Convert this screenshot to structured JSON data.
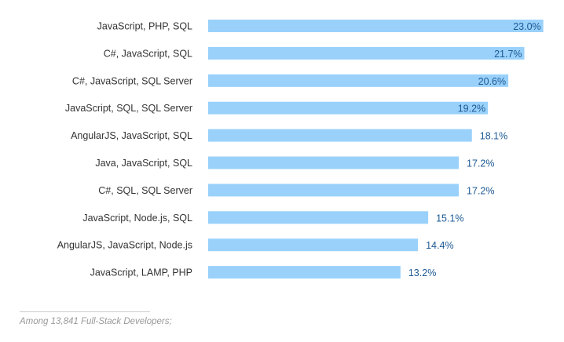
{
  "chart_data": {
    "type": "bar",
    "orientation": "horizontal",
    "categories": [
      "JavaScript, PHP, SQL",
      "C#, JavaScript, SQL",
      "C#, JavaScript, SQL Server",
      "JavaScript, SQL, SQL Server",
      "AngularJS, JavaScript, SQL",
      "Java, JavaScript, SQL",
      "C#, SQL, SQL Server",
      "JavaScript, Node.js, SQL",
      "AngularJS, JavaScript, Node.js",
      "JavaScript, LAMP, PHP"
    ],
    "values": [
      23.0,
      21.7,
      20.6,
      19.2,
      18.1,
      17.2,
      17.2,
      15.1,
      14.4,
      13.2
    ],
    "value_labels": [
      "23.0%",
      "21.7%",
      "20.6%",
      "19.2%",
      "18.1%",
      "17.2%",
      "17.2%",
      "15.1%",
      "14.4%",
      "13.2%"
    ],
    "unit": "%",
    "grid": false,
    "colors": {
      "bar": "#99d1fb",
      "label": "#1d5a94"
    }
  },
  "footnote": "Among 13,841 Full-Stack Developers;"
}
